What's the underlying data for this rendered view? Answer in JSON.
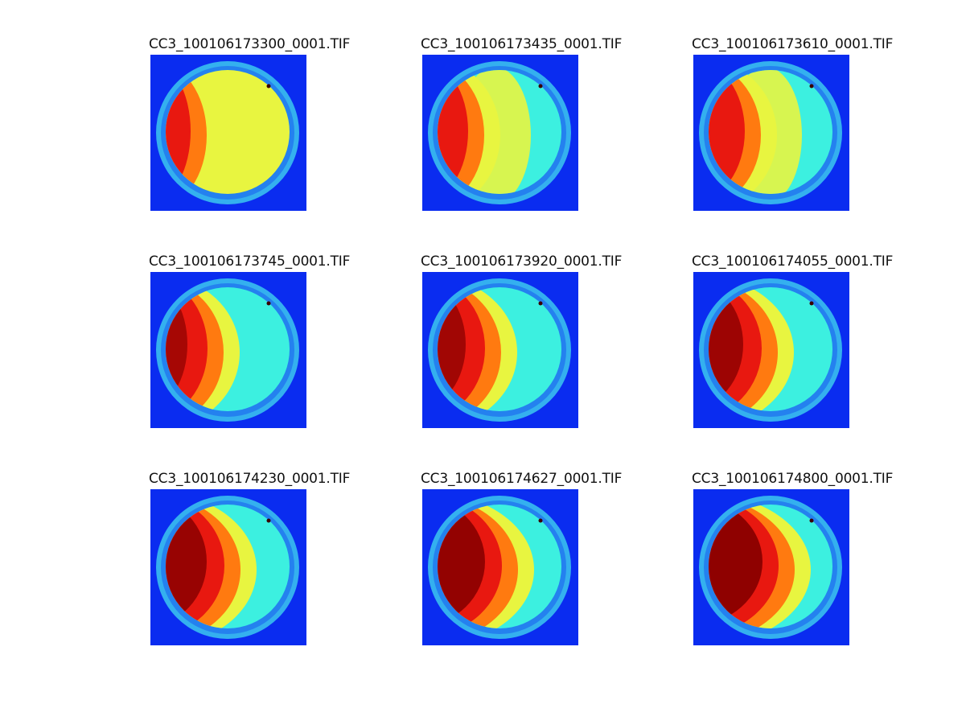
{
  "figure": {
    "panels": [
      {
        "title": "CC3_100106173300_0001.TIF",
        "frame": 0
      },
      {
        "title": "CC3_100106173435_0001.TIF",
        "frame": 1
      },
      {
        "title": "CC3_100106173610_0001.TIF",
        "frame": 2
      },
      {
        "title": "CC3_100106173745_0001.TIF",
        "frame": 3
      },
      {
        "title": "CC3_100106173920_0001.TIF",
        "frame": 4
      },
      {
        "title": "CC3_100106174055_0001.TIF",
        "frame": 5
      },
      {
        "title": "CC3_100106174230_0001.TIF",
        "frame": 6
      },
      {
        "title": "CC3_100106174627_0001.TIF",
        "frame": 7
      },
      {
        "title": "CC3_100106174800_0001.TIF",
        "frame": 8
      }
    ],
    "colormap": "jet",
    "colors": {
      "background": "#0a2cf0",
      "rim": "#3cc8ee",
      "cyan": "#3cf0e0",
      "yellow": "#e8f540",
      "orange": "#ff7a10",
      "red": "#e81810",
      "darkred": "#8a0000"
    }
  }
}
